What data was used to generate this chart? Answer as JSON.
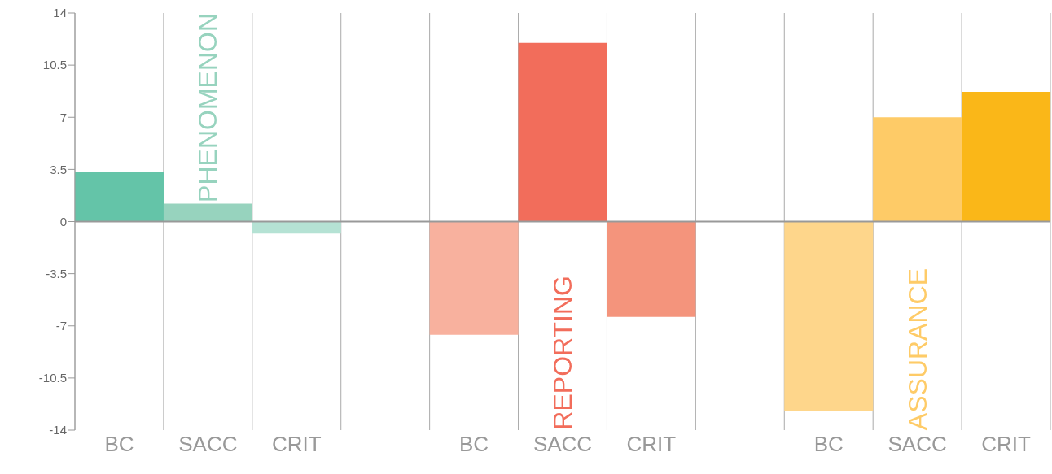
{
  "chart_data": {
    "type": "bar",
    "categories": [
      "BC",
      "SACC",
      "CRIT",
      null,
      "BC",
      "SACC",
      "CRIT",
      null,
      "BC",
      "SACC",
      "CRIT"
    ],
    "values": [
      3.3,
      1.2,
      -0.8,
      null,
      -7.6,
      12,
      -6.4,
      null,
      -12.7,
      7,
      8.7
    ],
    "colors": [
      "#64c4a8",
      "#97d3be",
      "#b5e2d4",
      "#ffffff",
      "#f8b19e",
      "#f26d5b",
      "#f4947c",
      "#ffffff",
      "#fed68b",
      "#fecb67",
      "#fab718"
    ],
    "ylim": [
      -14,
      14
    ],
    "yticks": [
      -14,
      -10.5,
      -7,
      -3.5,
      0,
      3.5,
      7,
      10.5,
      14
    ],
    "grid": "x",
    "ref_lines": [
      {
        "axis": "y",
        "value": 0,
        "color": "#999999"
      }
    ],
    "annotations": [
      "PHENOMENON",
      "REPORTING",
      "ASSURANCE"
    ]
  }
}
